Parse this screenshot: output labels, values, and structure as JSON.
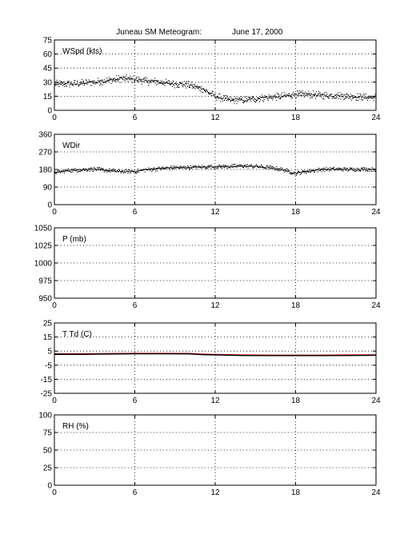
{
  "figure": {
    "title": "Juneau SM Meteogram:",
    "date": "June 17, 2000"
  },
  "chart_data": [
    {
      "type": "scatter",
      "label": "WSpd (kts)",
      "xlim": [
        0,
        24
      ],
      "xticks": [
        0,
        6,
        12,
        18,
        24
      ],
      "ylim": [
        0,
        75
      ],
      "yticks": [
        0,
        15,
        30,
        45,
        60,
        75
      ],
      "grid": true,
      "series": [
        {
          "color": "#000000",
          "x": [
            0,
            1,
            2,
            3,
            4,
            5,
            6,
            7,
            8,
            9,
            10,
            11,
            12,
            13,
            14,
            15,
            16,
            17,
            18,
            19,
            20,
            21,
            22,
            23,
            24
          ],
          "y": [
            28,
            28,
            29,
            30,
            32,
            34,
            33,
            31,
            30,
            28,
            27,
            23,
            15,
            11,
            11,
            12,
            14,
            15,
            17,
            17,
            16,
            16,
            15,
            14,
            14
          ]
        }
      ]
    },
    {
      "type": "scatter",
      "label": "WDir",
      "xlim": [
        0,
        24
      ],
      "xticks": [
        0,
        6,
        12,
        18,
        24
      ],
      "ylim": [
        0,
        360
      ],
      "yticks": [
        0,
        90,
        180,
        270,
        360
      ],
      "grid": true,
      "series": [
        {
          "color": "#000000",
          "x": [
            0,
            1,
            2,
            3,
            4,
            5,
            6,
            7,
            8,
            9,
            10,
            11,
            12,
            13,
            14,
            15,
            16,
            17,
            18,
            19,
            20,
            21,
            22,
            23,
            24
          ],
          "y": [
            165,
            175,
            178,
            182,
            175,
            170,
            170,
            180,
            185,
            190,
            190,
            192,
            195,
            195,
            198,
            196,
            190,
            180,
            160,
            172,
            180,
            182,
            180,
            182,
            180
          ]
        }
      ]
    },
    {
      "type": "line",
      "label": "P (mb)",
      "xlim": [
        0,
        24
      ],
      "xticks": [
        0,
        6,
        12,
        18,
        24
      ],
      "ylim": [
        950,
        1050
      ],
      "yticks": [
        950,
        975,
        1000,
        1025,
        1050
      ],
      "grid": true,
      "series": []
    },
    {
      "type": "line",
      "label": "T Td (C)",
      "xlim": [
        0,
        24
      ],
      "xticks": [
        0,
        6,
        12,
        18,
        24
      ],
      "ylim": [
        -25,
        25
      ],
      "yticks": [
        -25,
        -15,
        -5,
        5,
        15,
        25
      ],
      "grid": true,
      "series": [
        {
          "color": "#cc0000",
          "x": [
            0,
            2,
            4,
            6,
            8,
            10,
            11,
            12,
            14,
            16,
            18,
            20,
            22,
            24
          ],
          "y": [
            3,
            3,
            3.2,
            3.4,
            3.4,
            3.3,
            2.8,
            2.6,
            2.2,
            2.1,
            2.1,
            2.1,
            2.2,
            2.3
          ]
        },
        {
          "color": "#000000",
          "x": [
            0,
            2,
            4,
            6,
            8,
            10,
            11,
            12,
            14,
            16,
            18,
            20,
            22,
            24
          ],
          "y": [
            2.7,
            2.7,
            2.9,
            3.1,
            3.1,
            3.0,
            2.5,
            2.3,
            1.9,
            1.8,
            1.8,
            1.8,
            1.9,
            2.0
          ]
        }
      ]
    },
    {
      "type": "line",
      "label": "RH (%)",
      "xlim": [
        0,
        24
      ],
      "xticks": [
        0,
        6,
        12,
        18,
        24
      ],
      "ylim": [
        0,
        100
      ],
      "yticks": [
        0,
        25,
        50,
        75,
        100
      ],
      "grid": true,
      "series": []
    }
  ]
}
